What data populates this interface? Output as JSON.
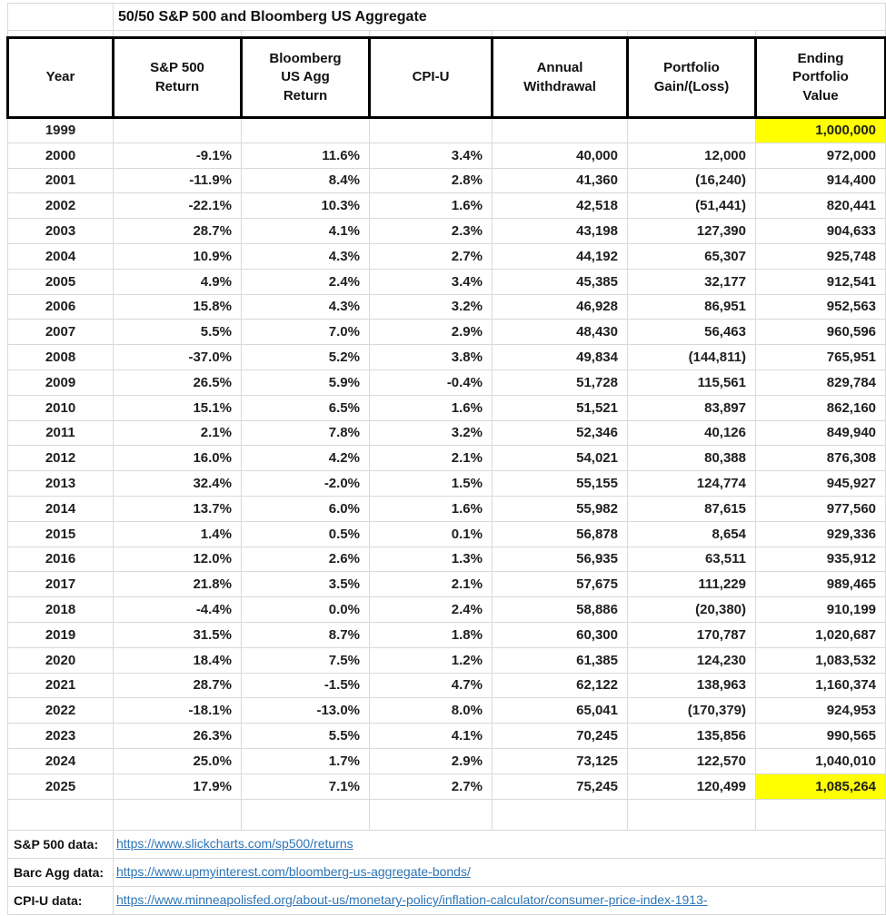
{
  "sheet_title": "50/50 S&P 500 and Bloomberg US Aggregate",
  "table": {
    "headers": [
      "Year",
      "S&P 500\nReturn",
      "Bloomberg\nUS Agg\nReturn",
      "CPI-U",
      "Annual\nWithdrawal",
      "Portfolio\nGain/(Loss)",
      "Ending\nPortfolio\nValue"
    ],
    "column_keys": [
      "year",
      "sp500-return",
      "us-agg-return",
      "cpi-u",
      "annual-withdrawal",
      "portfolio-gain-loss",
      "ending-portfolio-value"
    ],
    "rows": [
      [
        "1999",
        "",
        "",
        "",
        "",
        "",
        "1,000,000"
      ],
      [
        "2000",
        "-9.1%",
        "11.6%",
        "3.4%",
        "40,000",
        "12,000",
        "972,000"
      ],
      [
        "2001",
        "-11.9%",
        "8.4%",
        "2.8%",
        "41,360",
        "(16,240)",
        "914,400"
      ],
      [
        "2002",
        "-22.1%",
        "10.3%",
        "1.6%",
        "42,518",
        "(51,441)",
        "820,441"
      ],
      [
        "2003",
        "28.7%",
        "4.1%",
        "2.3%",
        "43,198",
        "127,390",
        "904,633"
      ],
      [
        "2004",
        "10.9%",
        "4.3%",
        "2.7%",
        "44,192",
        "65,307",
        "925,748"
      ],
      [
        "2005",
        "4.9%",
        "2.4%",
        "3.4%",
        "45,385",
        "32,177",
        "912,541"
      ],
      [
        "2006",
        "15.8%",
        "4.3%",
        "3.2%",
        "46,928",
        "86,951",
        "952,563"
      ],
      [
        "2007",
        "5.5%",
        "7.0%",
        "2.9%",
        "48,430",
        "56,463",
        "960,596"
      ],
      [
        "2008",
        "-37.0%",
        "5.2%",
        "3.8%",
        "49,834",
        "(144,811)",
        "765,951"
      ],
      [
        "2009",
        "26.5%",
        "5.9%",
        "-0.4%",
        "51,728",
        "115,561",
        "829,784"
      ],
      [
        "2010",
        "15.1%",
        "6.5%",
        "1.6%",
        "51,521",
        "83,897",
        "862,160"
      ],
      [
        "2011",
        "2.1%",
        "7.8%",
        "3.2%",
        "52,346",
        "40,126",
        "849,940"
      ],
      [
        "2012",
        "16.0%",
        "4.2%",
        "2.1%",
        "54,021",
        "80,388",
        "876,308"
      ],
      [
        "2013",
        "32.4%",
        "-2.0%",
        "1.5%",
        "55,155",
        "124,774",
        "945,927"
      ],
      [
        "2014",
        "13.7%",
        "6.0%",
        "1.6%",
        "55,982",
        "87,615",
        "977,560"
      ],
      [
        "2015",
        "1.4%",
        "0.5%",
        "0.1%",
        "56,878",
        "8,654",
        "929,336"
      ],
      [
        "2016",
        "12.0%",
        "2.6%",
        "1.3%",
        "56,935",
        "63,511",
        "935,912"
      ],
      [
        "2017",
        "21.8%",
        "3.5%",
        "2.1%",
        "57,675",
        "111,229",
        "989,465"
      ],
      [
        "2018",
        "-4.4%",
        "0.0%",
        "2.4%",
        "58,886",
        "(20,380)",
        "910,199"
      ],
      [
        "2019",
        "31.5%",
        "8.7%",
        "1.8%",
        "60,300",
        "170,787",
        "1,020,687"
      ],
      [
        "2020",
        "18.4%",
        "7.5%",
        "1.2%",
        "61,385",
        "124,230",
        "1,083,532"
      ],
      [
        "2021",
        "28.7%",
        "-1.5%",
        "4.7%",
        "62,122",
        "138,963",
        "1,160,374"
      ],
      [
        "2022",
        "-18.1%",
        "-13.0%",
        "8.0%",
        "65,041",
        "(170,379)",
        "924,953"
      ],
      [
        "2023",
        "26.3%",
        "5.5%",
        "4.1%",
        "70,245",
        "135,856",
        "990,565"
      ],
      [
        "2024",
        "25.0%",
        "1.7%",
        "2.9%",
        "73,125",
        "122,570",
        "1,040,010"
      ],
      [
        "2025",
        "17.9%",
        "7.1%",
        "2.7%",
        "75,245",
        "120,499",
        "1,085,264"
      ]
    ],
    "highlights": [
      {
        "row": 0,
        "col": 6
      },
      {
        "row": 26,
        "col": 6
      }
    ]
  },
  "sources": [
    {
      "label": "S&P 500 data:",
      "url": "https://www.slickcharts.com/sp500/returns"
    },
    {
      "label": "Barc Agg data:",
      "url": "https://www.upmyinterest.com/bloomberg-us-aggregate-bonds/"
    },
    {
      "label": "CPI-U data:",
      "url": "https://www.minneapolisfed.org/about-us/monetary-policy/inflation-calculator/consumer-price-index-1913-"
    }
  ],
  "colors": {
    "highlight": "#FFFF00",
    "gridline": "#D9D9D9",
    "header_border": "#000000",
    "link": "#2E75B6",
    "text": "#1F1F1F"
  }
}
